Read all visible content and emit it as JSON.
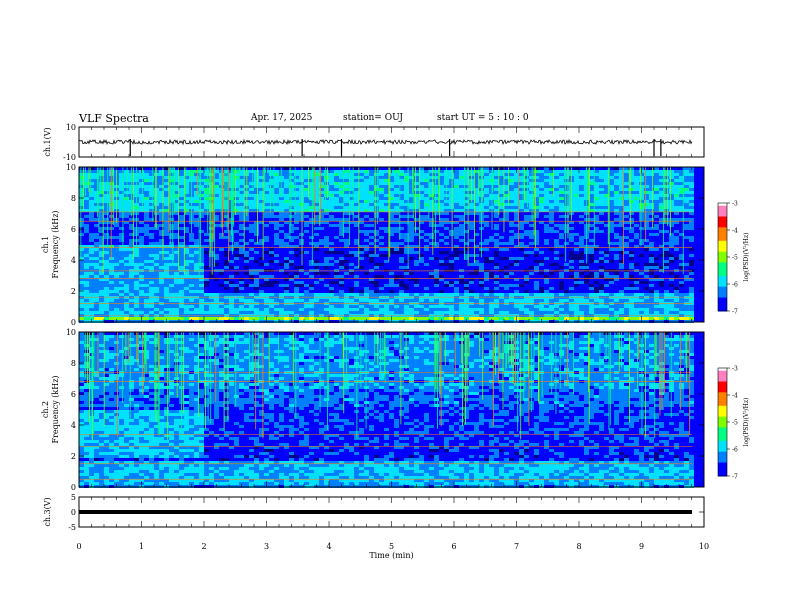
{
  "header": {
    "title": "VLF Spectra",
    "date": "Apr. 17, 2025",
    "station": "station= OUJ",
    "start": "start  UT =   5 : 10 : 0"
  },
  "chart_data": [
    {
      "type": "line",
      "ylabel": "ch.1(V)",
      "ylim": [
        -10,
        10
      ],
      "y_ticks": [
        "10",
        "-10"
      ],
      "baseline": 0,
      "spike_x_min": [
        0.82,
        3.57,
        4.2,
        5.93,
        9.2,
        9.31
      ]
    },
    {
      "type": "heatmap",
      "ylabel_top": "ch.1",
      "ylabel": "Frequency (kHz)",
      "ylim": [
        0,
        10
      ],
      "y_ticks": [
        "0",
        "2",
        "4",
        "6",
        "8",
        "10"
      ],
      "colorbar": {
        "label": "log(PSD)(V²/Hz)",
        "range": [
          -7,
          -3
        ],
        "ticks": [
          "-3",
          "-4",
          "-5",
          "-6",
          "-7"
        ]
      },
      "bands": [
        {
          "f": [
            0,
            0.25
          ],
          "level": 2
        },
        {
          "f": [
            0.25,
            0.45
          ],
          "level": 5
        },
        {
          "f": [
            0.45,
            2.0
          ],
          "level": 2.6
        },
        {
          "f": [
            2.0,
            4.8
          ],
          "level": 1.0
        },
        {
          "f": [
            4.8,
            7.2
          ],
          "level": 1.4
        },
        {
          "f": [
            7.2,
            10
          ],
          "level": 2.8
        }
      ],
      "tones_khz": [
        0.4,
        1.2,
        1.6,
        2.8,
        3.3,
        4.8,
        6.5,
        7.1
      ]
    },
    {
      "type": "heatmap",
      "ylabel_top": "ch.2",
      "ylabel": "Frequency (kHz)",
      "ylim": [
        0,
        10
      ],
      "y_ticks": [
        "0",
        "2",
        "4",
        "6",
        "8",
        "10"
      ],
      "colorbar": {
        "label": "log(PSD)(V²/Hz)",
        "range": [
          -7,
          -3
        ],
        "ticks": [
          "-3",
          "-4",
          "-5",
          "-6",
          "-7"
        ]
      },
      "bands": [
        {
          "f": [
            0,
            0.25
          ],
          "level": 2
        },
        {
          "f": [
            0.25,
            1.8
          ],
          "level": 2.6
        },
        {
          "f": [
            1.8,
            2.8
          ],
          "level": 1.2
        },
        {
          "f": [
            2.8,
            5.2
          ],
          "level": 1.3
        },
        {
          "f": [
            5.2,
            6.4
          ],
          "level": 1.8
        },
        {
          "f": [
            6.4,
            10
          ],
          "level": 2.2
        }
      ],
      "tones_khz": [
        0.5,
        1.5,
        2.6,
        3.4,
        6.8,
        7.4
      ]
    },
    {
      "type": "line",
      "ylabel": "ch.3(V)",
      "ylim": [
        -5,
        5
      ],
      "y_ticks": [
        "5",
        "0",
        "-5"
      ],
      "baseline": 0
    }
  ],
  "x_axis": {
    "label": "Time (min)",
    "range": [
      0,
      10
    ],
    "ticks": [
      "0",
      "1",
      "2",
      "3",
      "4",
      "5",
      "6",
      "7",
      "8",
      "9",
      "10"
    ]
  },
  "colors": {
    "ramp": [
      "#00008b",
      "#0000ff",
      "#0080ff",
      "#00e0ff",
      "#00ff80",
      "#80ff00",
      "#ffff00",
      "#ff8000",
      "#ff0000",
      "#ff80c0",
      "#ffffff"
    ]
  }
}
